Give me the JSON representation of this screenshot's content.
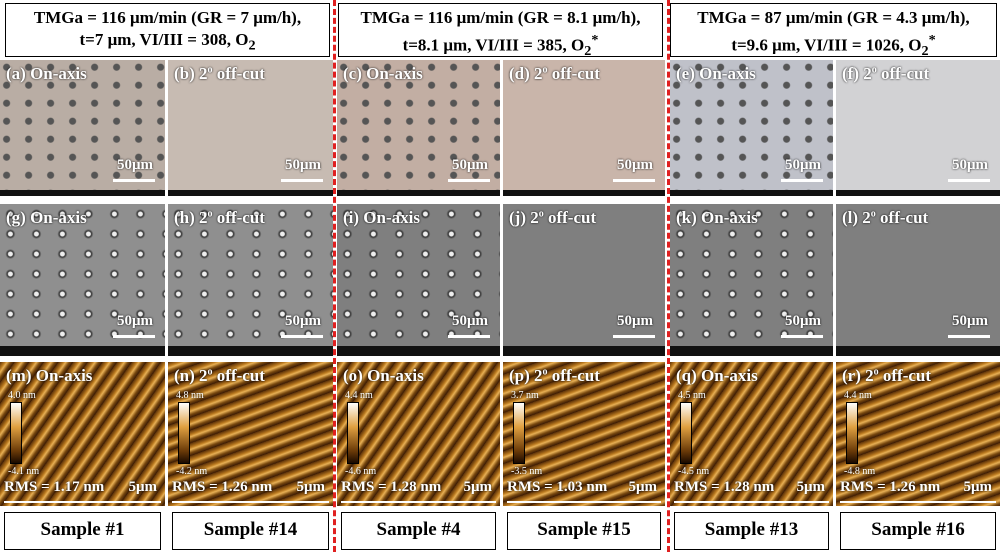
{
  "headers": [
    {
      "line1": "TMGa = 116 μm/min (GR = 7 μm/h),",
      "line2": "t=7 μm, VI/III = 308, O",
      "sub": "2"
    },
    {
      "line1": "TMGa = 116 μm/min (GR = 8.1 μm/h),",
      "line2": "t=8.1 μm, VI/III = 385, O",
      "sub": "2",
      "sup": "*"
    },
    {
      "line1": "TMGa = 87 μm/min (GR = 4.3 μm/h),",
      "line2": "t=9.6 μm, VI/III = 1026, O",
      "sub": "2",
      "sup": "*"
    }
  ],
  "columns": [
    {
      "optical": {
        "id": "(a)",
        "text": "On-axis",
        "scale": "50μm"
      },
      "sem": {
        "id": "(g)",
        "text": "On-axis",
        "scale": "50μm"
      },
      "afm": {
        "id": "(m)",
        "text": "On-axis",
        "max": "4.0 nm",
        "min": "-4.1 nm",
        "rms": "RMS = 1.17 nm",
        "scale": "5μm"
      },
      "sample": "Sample #1"
    },
    {
      "optical": {
        "id": "(b)",
        "deg": "2",
        "sup": "o",
        "text": "off-cut",
        "scale": "50μm"
      },
      "sem": {
        "id": "(h)",
        "deg": "2",
        "sup": "o",
        "text": "off-cut",
        "scale": "50μm"
      },
      "afm": {
        "id": "(n)",
        "deg": "2",
        "sup": "o",
        "text": "off-cut",
        "max": "4.8 nm",
        "min": "-4.2 nm",
        "rms": "RMS = 1.26 nm",
        "scale": "5μm"
      },
      "sample": "Sample #14"
    },
    {
      "optical": {
        "id": "(c)",
        "text": "On-axis",
        "scale": "50μm"
      },
      "sem": {
        "id": "(i)",
        "text": "On-axis",
        "scale": "50μm"
      },
      "afm": {
        "id": "(o)",
        "text": "On-axis",
        "max": "4.4 nm",
        "min": "-4.6 nm",
        "rms": "RMS = 1.28 nm",
        "scale": "5μm"
      },
      "sample": "Sample #4"
    },
    {
      "optical": {
        "id": "(d)",
        "deg": "2",
        "sup": "o",
        "text": "off-cut",
        "scale": "50μm"
      },
      "sem": {
        "id": "(j)",
        "deg": "2",
        "sup": "o",
        "text": "off-cut",
        "scale": "50μm"
      },
      "afm": {
        "id": "(p)",
        "deg": "2",
        "sup": "o",
        "text": "off-cut",
        "max": "3.7 nm",
        "min": "-3.5 nm",
        "rms": "RMS = 1.03 nm",
        "scale": "5μm"
      },
      "sample": "Sample #15"
    },
    {
      "optical": {
        "id": "(e)",
        "text": "On-axis",
        "scale": "50μm"
      },
      "sem": {
        "id": "(k)",
        "text": "On-axis",
        "scale": "50μm"
      },
      "afm": {
        "id": "(q)",
        "text": "On-axis",
        "max": "4.5 nm",
        "min": "-4.5 nm",
        "rms": "RMS = 1.28 nm",
        "scale": "5μm"
      },
      "sample": "Sample #13"
    },
    {
      "optical": {
        "id": "(f)",
        "deg": "2",
        "sup": "o",
        "text": "off-cut",
        "scale": "50μm"
      },
      "sem": {
        "id": "(l)",
        "deg": "2",
        "sup": "o",
        "text": "off-cut",
        "scale": "50μm"
      },
      "afm": {
        "id": "(r)",
        "deg": "2",
        "sup": "o",
        "text": "off-cut",
        "max": "4.4 nm",
        "min": "-4.8 nm",
        "rms": "RMS = 1.26 nm",
        "scale": "5μm"
      },
      "sample": "Sample #16"
    }
  ]
}
